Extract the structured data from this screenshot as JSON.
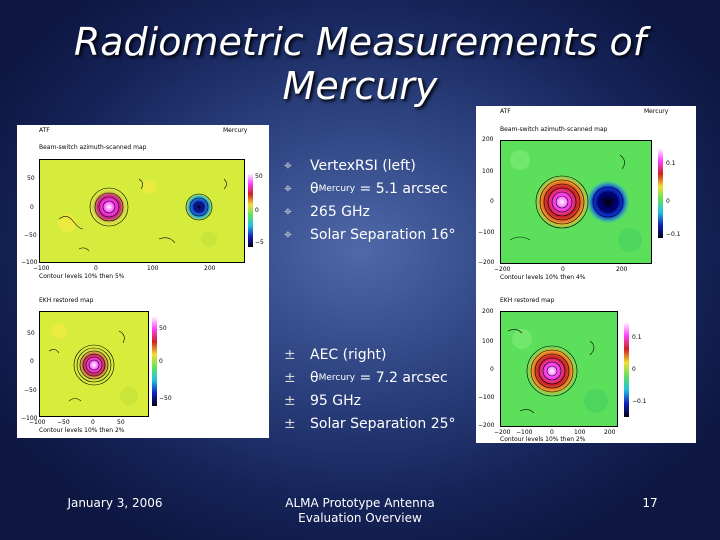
{
  "title": {
    "line1": "Radiometric Measurements of",
    "line2": "Mercury"
  },
  "left_bullets": [
    {
      "marker": "⌖",
      "pre": "VertexRSI (left)",
      "sub": "",
      "post": ""
    },
    {
      "marker": "⌖",
      "pre": "θ",
      "sub": "Mercury",
      "post": " = 5.1 arcsec"
    },
    {
      "marker": "⌖",
      "pre": "265 GHz",
      "sub": "",
      "post": ""
    },
    {
      "marker": "⌖",
      "pre": "Solar Separation 16°",
      "sub": "",
      "post": ""
    }
  ],
  "right_bullets": [
    {
      "marker": "±",
      "pre": "AEC (right)",
      "sub": "",
      "post": ""
    },
    {
      "marker": "±",
      "pre": "θ",
      "sub": "Mercury",
      "post": " = 7.2 arcsec"
    },
    {
      "marker": "±",
      "pre": "95 GHz",
      "sub": "",
      "post": ""
    },
    {
      "marker": "±",
      "pre": "Solar Separation 25°",
      "sub": "",
      "post": ""
    }
  ],
  "left_panel": {
    "atf": "ATF",
    "object": "Mercury",
    "top_map": {
      "title": "Beam-switch azimuth-scanned map",
      "yticks": [
        "50",
        "0",
        "−50",
        "−100"
      ],
      "xticks": [
        "−100",
        "0",
        "100",
        "200"
      ],
      "cbar": [
        "50",
        "0",
        "−5"
      ],
      "caption": "Contour levels 10% then 5%"
    },
    "bottom_map": {
      "title": "EKH restored  map",
      "yticks": [
        "50",
        "0",
        "−50",
        "−100"
      ],
      "xticks": [
        "−100",
        "−50",
        "0",
        "50"
      ],
      "cbar": [
        "50",
        "0",
        "−50"
      ],
      "caption": "Contour levels 10% then 2%"
    }
  },
  "right_panel": {
    "atf": "ATF",
    "object": "Mercury",
    "top_map": {
      "title": "Beam-switch azimuth-scanned map",
      "yticks": [
        "200",
        "100",
        "0",
        "−100",
        "−200"
      ],
      "xticks": [
        "−200",
        "0",
        "200"
      ],
      "cbar": [
        "0.1",
        "0",
        "−0.1"
      ],
      "caption": "Contour levels 10% then 4%"
    },
    "bottom_map": {
      "title": "EKH restored  map",
      "yticks": [
        "200",
        "100",
        "0",
        "−100",
        "−200"
      ],
      "xticks": [
        "−200",
        "−100",
        "0",
        "100",
        "200"
      ],
      "cbar": [
        "0.1",
        "0",
        "−0.1"
      ],
      "caption": "Contour levels 10% then 2%"
    }
  },
  "footer": {
    "date": "January 3, 2006",
    "center_line1": "ALMA Prototype Antenna",
    "center_line2": "Evaluation Overview",
    "page": "17"
  }
}
